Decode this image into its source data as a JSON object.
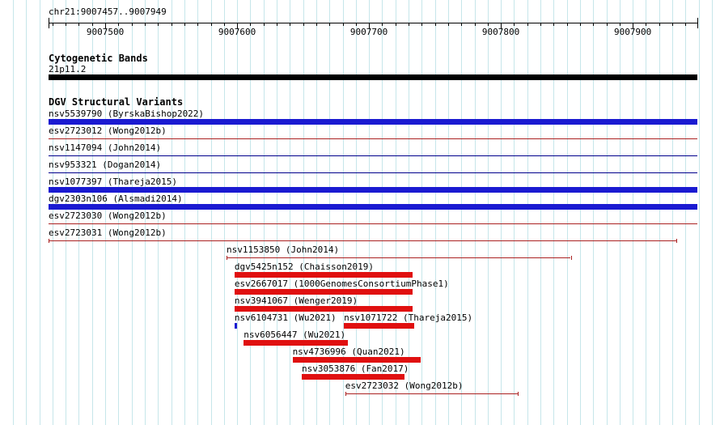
{
  "header": {
    "region": "chr21:9007457..9007949"
  },
  "chart_data": {
    "type": "genome-browser-tracks",
    "axis": {
      "chrom": "chr21",
      "view_start": 9007457,
      "view_end": 9007949,
      "major_ticks": [
        9007500,
        9007600,
        9007700,
        9007800,
        9007900
      ],
      "minor_tick_interval": 10
    },
    "cytogenetic": {
      "title": "Cytogenetic Bands",
      "band": "21p11.2",
      "band_color": "#000000"
    },
    "dgv": {
      "title": "DGV Structural Variants",
      "rows": [
        {
          "items": [
            {
              "id": "nsv5539790",
              "study": "ByrskaBishop2022",
              "label": "nsv5539790 (ByrskaBishop2022)",
              "color": "blue",
              "glyph": "thick",
              "start": 9007457,
              "end": 9007949
            }
          ]
        },
        {
          "items": [
            {
              "id": "esv2723012",
              "study": "Wong2012b",
              "label": "esv2723012 (Wong2012b)",
              "color": "red",
              "glyph": "thin",
              "start": 9007457,
              "end": 9007949
            }
          ]
        },
        {
          "items": [
            {
              "id": "nsv1147094",
              "study": "John2014",
              "label": "nsv1147094 (John2014)",
              "color": "blue",
              "glyph": "thin",
              "start": 9007457,
              "end": 9007949
            }
          ]
        },
        {
          "items": [
            {
              "id": "nsv953321",
              "study": "Dogan2014",
              "label": "nsv953321 (Dogan2014)",
              "color": "blue",
              "glyph": "thin",
              "start": 9007457,
              "end": 9007949
            }
          ]
        },
        {
          "items": [
            {
              "id": "nsv1077397",
              "study": "Thareja2015",
              "label": "nsv1077397 (Thareja2015)",
              "color": "blue",
              "glyph": "thick",
              "start": 9007457,
              "end": 9007949
            }
          ]
        },
        {
          "items": [
            {
              "id": "dgv2303n106",
              "study": "Alsmadi2014",
              "label": "dgv2303n106 (Alsmadi2014)",
              "color": "blue",
              "glyph": "thick",
              "start": 9007457,
              "end": 9007949
            }
          ]
        },
        {
          "items": [
            {
              "id": "esv2723030",
              "study": "Wong2012b",
              "label": "esv2723030 (Wong2012b)",
              "color": "red",
              "glyph": "thin",
              "start": 9007457,
              "end": 9007949
            }
          ]
        },
        {
          "items": [
            {
              "id": "esv2723031",
              "study": "Wong2012b",
              "label": "esv2723031 (Wong2012b)",
              "color": "red",
              "glyph": "range",
              "start": 9007457,
              "end": 9007933
            }
          ]
        },
        {
          "items": [
            {
              "id": "nsv1153850",
              "study": "John2014",
              "label": "nsv1153850 (John2014)",
              "color": "red",
              "glyph": "range",
              "start": 9007592,
              "end": 9007853
            }
          ]
        },
        {
          "items": [
            {
              "id": "dgv5425n152",
              "study": "Chaisson2019",
              "label": "dgv5425n152 (Chaisson2019)",
              "color": "red",
              "glyph": "thick",
              "start": 9007598,
              "end": 9007733
            }
          ]
        },
        {
          "items": [
            {
              "id": "esv2667017",
              "study": "1000GenomesConsortiumPhase1",
              "label": "esv2667017 (1000GenomesConsortiumPhase1)",
              "color": "red",
              "glyph": "thick",
              "start": 9007598,
              "end": 9007733
            }
          ]
        },
        {
          "items": [
            {
              "id": "nsv3941067",
              "study": "Wenger2019",
              "label": "nsv3941067 (Wenger2019)",
              "color": "red",
              "glyph": "thick",
              "start": 9007598,
              "end": 9007733
            }
          ]
        },
        {
          "items": [
            {
              "id": "nsv6104731",
              "study": "Wu2021",
              "label": "nsv6104731 (Wu2021)",
              "color": "blue",
              "glyph": "point",
              "start": 9007598,
              "end": 9007600
            },
            {
              "id": "nsv1071722",
              "study": "Thareja2015",
              "label": "nsv1071722 (Thareja2015)",
              "color": "red",
              "glyph": "thick",
              "start": 9007681,
              "end": 9007734
            }
          ]
        },
        {
          "items": [
            {
              "id": "nsv6056447",
              "study": "Wu2021",
              "label": "nsv6056447 (Wu2021)",
              "color": "red",
              "glyph": "thick",
              "start": 9007605,
              "end": 9007684
            }
          ]
        },
        {
          "items": [
            {
              "id": "nsv4736996",
              "study": "Quan2021",
              "label": "nsv4736996 (Quan2021)",
              "color": "red",
              "glyph": "thick",
              "start": 9007642,
              "end": 9007739
            }
          ]
        },
        {
          "items": [
            {
              "id": "nsv3053876",
              "study": "Fan2017",
              "label": "nsv3053876 (Fan2017)",
              "color": "red",
              "glyph": "thick",
              "start": 9007649,
              "end": 9007727
            }
          ]
        },
        {
          "items": [
            {
              "id": "esv2723032",
              "study": "Wong2012b",
              "label": "esv2723032 (Wong2012b)",
              "color": "red",
              "glyph": "range",
              "start": 9007682,
              "end": 9007813
            }
          ]
        }
      ]
    }
  },
  "colors": {
    "grid": "#c6e6ea",
    "axis": "#000000",
    "blue_thick": "#1a1ad1",
    "blue_thin": "#00008b",
    "red_thick": "#e01010",
    "red_thin": "#aa2222"
  }
}
